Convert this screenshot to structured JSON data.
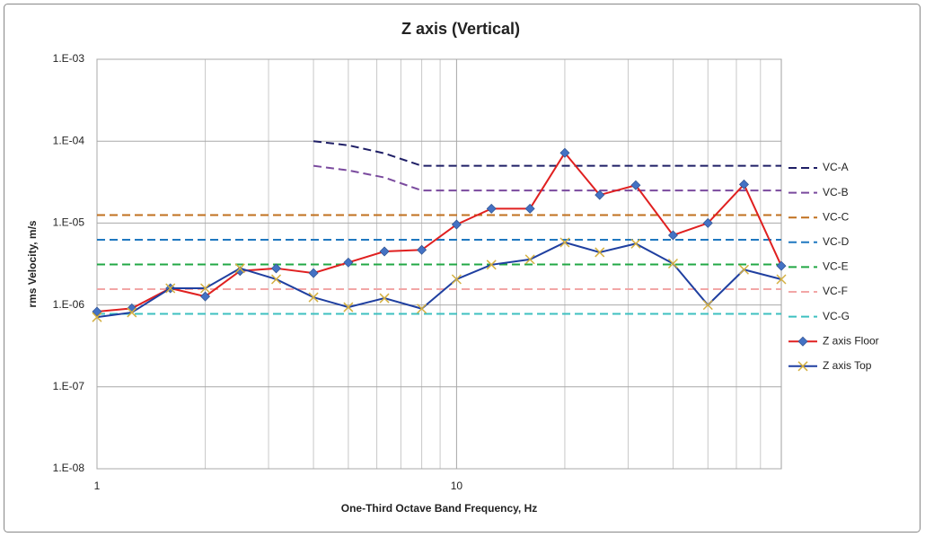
{
  "chart_data": {
    "type": "line",
    "title": "Z axis (Vertical)",
    "x_label": "One-Third Octave Band Frequency, Hz",
    "y_label": "rms Velocity, m/s",
    "x": [
      1,
      1.25,
      1.6,
      2,
      2.5,
      3.15,
      4,
      5,
      6.3,
      8,
      10,
      12.5,
      16,
      20,
      25,
      31.5,
      40,
      50,
      63,
      80
    ],
    "xlim": [
      1,
      80
    ],
    "xticks": [
      1,
      10
    ],
    "xgrid_minor": [
      2,
      3,
      4,
      5,
      6,
      7,
      8,
      9,
      20,
      30,
      40,
      50,
      60,
      70
    ],
    "ylim": [
      1e-08,
      0.001
    ],
    "yticks": [
      {
        "value": 1e-08,
        "label": "1.E-08"
      },
      {
        "value": 1e-07,
        "label": "1.E-07"
      },
      {
        "value": 1e-06,
        "label": "1.E-06"
      },
      {
        "value": 1e-05,
        "label": "1.E-05"
      },
      {
        "value": 0.0001,
        "label": "1.E-04"
      },
      {
        "value": 0.001,
        "label": "1.E-03"
      }
    ],
    "x_log": true,
    "y_log": true,
    "grid": true,
    "legend": "right",
    "series": [
      {
        "name": "VC-A",
        "color": "#1f1f66",
        "dash": true,
        "values": [
          null,
          null,
          null,
          null,
          null,
          null,
          0.0001,
          8.9e-05,
          7.1e-05,
          5e-05,
          5e-05,
          5e-05,
          5e-05,
          5e-05,
          5e-05,
          5e-05,
          5e-05,
          5e-05,
          5e-05,
          5e-05
        ]
      },
      {
        "name": "VC-B",
        "color": "#7a4a9e",
        "dash": true,
        "values": [
          null,
          null,
          null,
          null,
          null,
          null,
          5e-05,
          4.4e-05,
          3.6e-05,
          2.5e-05,
          2.5e-05,
          2.5e-05,
          2.5e-05,
          2.5e-05,
          2.5e-05,
          2.5e-05,
          2.5e-05,
          2.5e-05,
          2.5e-05,
          2.5e-05
        ]
      },
      {
        "name": "VC-C",
        "color": "#c0701f",
        "dash": true,
        "values": [
          1.25e-05,
          1.25e-05,
          1.25e-05,
          1.25e-05,
          1.25e-05,
          1.25e-05,
          1.25e-05,
          1.25e-05,
          1.25e-05,
          1.25e-05,
          1.25e-05,
          1.25e-05,
          1.25e-05,
          1.25e-05,
          1.25e-05,
          1.25e-05,
          1.25e-05,
          1.25e-05,
          1.25e-05,
          1.25e-05
        ]
      },
      {
        "name": "VC-D",
        "color": "#1f78c0",
        "dash": true,
        "values": [
          6.25e-06,
          6.25e-06,
          6.25e-06,
          6.25e-06,
          6.25e-06,
          6.25e-06,
          6.25e-06,
          6.25e-06,
          6.25e-06,
          6.25e-06,
          6.25e-06,
          6.25e-06,
          6.25e-06,
          6.25e-06,
          6.25e-06,
          6.25e-06,
          6.25e-06,
          6.25e-06,
          6.25e-06,
          6.25e-06
        ]
      },
      {
        "name": "VC-E",
        "color": "#22a845",
        "dash": true,
        "values": [
          3.12e-06,
          3.12e-06,
          3.12e-06,
          3.12e-06,
          3.12e-06,
          3.12e-06,
          3.12e-06,
          3.12e-06,
          3.12e-06,
          3.12e-06,
          3.12e-06,
          3.12e-06,
          3.12e-06,
          3.12e-06,
          3.12e-06,
          3.12e-06,
          3.12e-06,
          3.12e-06,
          3.12e-06,
          3.12e-06
        ]
      },
      {
        "name": "VC-F",
        "color": "#f2a6a6",
        "dash": true,
        "values": [
          1.56e-06,
          1.56e-06,
          1.56e-06,
          1.56e-06,
          1.56e-06,
          1.56e-06,
          1.56e-06,
          1.56e-06,
          1.56e-06,
          1.56e-06,
          1.56e-06,
          1.56e-06,
          1.56e-06,
          1.56e-06,
          1.56e-06,
          1.56e-06,
          1.56e-06,
          1.56e-06,
          1.56e-06,
          1.56e-06
        ]
      },
      {
        "name": "VC-G",
        "color": "#3ec0c0",
        "dash": true,
        "values": [
          7.8e-07,
          7.8e-07,
          7.8e-07,
          7.8e-07,
          7.8e-07,
          7.8e-07,
          7.8e-07,
          7.8e-07,
          7.8e-07,
          7.8e-07,
          7.8e-07,
          7.8e-07,
          7.8e-07,
          7.8e-07,
          7.8e-07,
          7.8e-07,
          7.8e-07,
          7.8e-07,
          7.8e-07,
          7.8e-07
        ]
      },
      {
        "name": "Z axis Floor",
        "color": "#e02020",
        "marker": "diamond",
        "marker_color": "#4472c4",
        "values": [
          8.3e-07,
          9.1e-07,
          1.6e-06,
          1.27e-06,
          2.6e-06,
          2.8e-06,
          2.45e-06,
          3.3e-06,
          4.5e-06,
          4.7e-06,
          9.6e-06,
          1.5e-05,
          1.5e-05,
          7.2e-05,
          2.2e-05,
          2.9e-05,
          7.1e-06,
          1e-05,
          2.96e-05,
          3e-06
        ]
      },
      {
        "name": "Z axis Top",
        "color": "#1f3fa0",
        "marker": "x",
        "marker_color": "#d4b040",
        "values": [
          7.1e-07,
          8.1e-07,
          1.6e-06,
          1.6e-06,
          2.8e-06,
          2.06e-06,
          1.24e-06,
          9.4e-07,
          1.21e-06,
          9e-07,
          2.06e-06,
          3.1e-06,
          3.6e-06,
          5.8e-06,
          4.4e-06,
          5.6e-06,
          3.2e-06,
          1e-06,
          2.7e-06,
          2.06e-06
        ]
      }
    ]
  }
}
